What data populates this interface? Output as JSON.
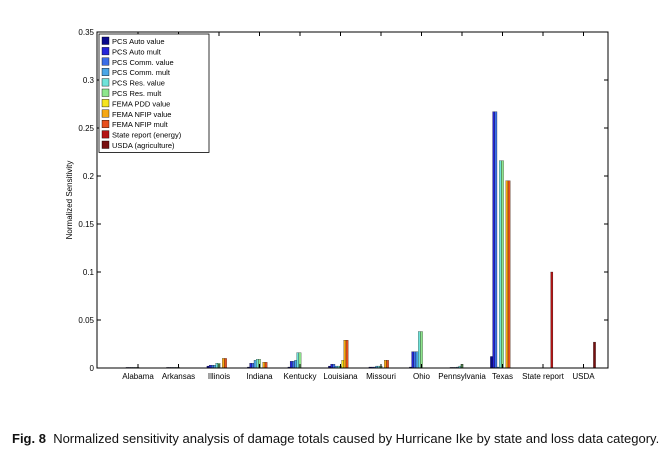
{
  "chart_data": {
    "type": "bar",
    "ylabel": "Normalized Sensitivity",
    "xlabel": "",
    "ylim": [
      0,
      0.35
    ],
    "yticks": [
      0,
      0.05,
      0.1,
      0.15,
      0.2,
      0.25,
      0.3,
      0.35
    ],
    "ytick_labels": [
      "0",
      "0.05",
      "0.1",
      "0.15",
      "0.2",
      "0.25",
      "0.3",
      "0.35"
    ],
    "grid": false,
    "legend_position": "top-left",
    "categories": [
      "Alabama",
      "Arkansas",
      "Illinois",
      "Indiana",
      "Kentucky",
      "Louisiana",
      "Missouri",
      "Ohio",
      "Pennsylvania",
      "Texas",
      "State report",
      "USDA"
    ],
    "series": [
      {
        "name": "PCS Auto value",
        "color": "#0a0a8c",
        "values": [
          0.0005,
          0.0003,
          0.002,
          0.001,
          0.001,
          0.002,
          0.001,
          0.001,
          0.0005,
          0.012,
          0,
          0
        ]
      },
      {
        "name": "PCS Auto mult",
        "color": "#2626d9",
        "values": [
          0.0005,
          0.0003,
          0.003,
          0.005,
          0.007,
          0.004,
          0.001,
          0.017,
          0.0005,
          0.267,
          0,
          0
        ]
      },
      {
        "name": "PCS Comm. value",
        "color": "#3c6ee6",
        "values": [
          0.0005,
          0.0003,
          0.003,
          0.005,
          0.007,
          0.004,
          0.001,
          0.017,
          0.0005,
          0.267,
          0,
          0
        ]
      },
      {
        "name": "PCS Comm. mult",
        "color": "#4ba6e6",
        "values": [
          0.0003,
          0.0003,
          0.003,
          0.008,
          0.008,
          0.002,
          0.002,
          0.017,
          0.001,
          0.001,
          0,
          0
        ]
      },
      {
        "name": "PCS Res. value",
        "color": "#6fe3d9",
        "values": [
          0.0003,
          0.0005,
          0.005,
          0.009,
          0.016,
          0.002,
          0.002,
          0.038,
          0.002,
          0.216,
          0,
          0
        ]
      },
      {
        "name": "PCS Res. mult",
        "color": "#8ee68c",
        "values": [
          0.0003,
          0.0005,
          0.005,
          0.009,
          0.016,
          0.002,
          0.002,
          0.038,
          0.004,
          0.216,
          0,
          0
        ]
      },
      {
        "name": "FEMA PDD value",
        "color": "#f5e41e",
        "values": [
          0,
          0,
          0,
          0,
          0,
          0.008,
          0,
          0,
          0,
          0,
          0,
          0
        ]
      },
      {
        "name": "FEMA NFIP value",
        "color": "#f5a814",
        "values": [
          0,
          0,
          0.01,
          0.006,
          0,
          0.029,
          0.008,
          0,
          0,
          0.195,
          0,
          0
        ]
      },
      {
        "name": "FEMA NFIP mult",
        "color": "#e8501e",
        "values": [
          0,
          0,
          0.01,
          0.006,
          0,
          0.029,
          0.008,
          0,
          0,
          0.195,
          0,
          0
        ]
      },
      {
        "name": "State report (energy)",
        "color": "#b41414",
        "values": [
          0,
          0,
          0,
          0,
          0,
          0,
          0,
          0,
          0,
          0,
          0.1,
          0
        ]
      },
      {
        "name": "USDA (agriculture)",
        "color": "#781010",
        "values": [
          0,
          0,
          0,
          0,
          0,
          0,
          0,
          0,
          0,
          0,
          0,
          0.027
        ]
      }
    ]
  },
  "caption": {
    "label": "Fig. 8",
    "text": "Normalized sensitivity analysis of damage totals caused by Hurricane Ike by state and loss data category."
  }
}
